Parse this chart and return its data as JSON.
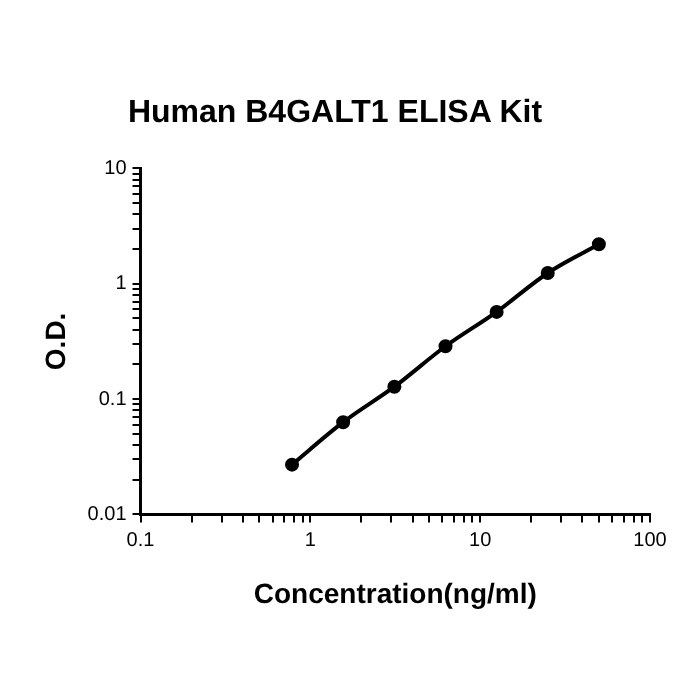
{
  "chart_data": {
    "type": "line",
    "title": "Human B4GALT1 ELISA Kit",
    "xlabel": "Concentration(ng/ml)",
    "ylabel": "O.D.",
    "x": [
      0.78,
      1.56,
      3.125,
      6.25,
      12.5,
      25,
      50
    ],
    "series": [
      {
        "color": "#000000",
        "values": [
          0.027,
          0.063,
          0.128,
          0.287,
          0.57,
          1.24,
          2.2
        ]
      }
    ],
    "log": "xy",
    "xlim": [
      0.1,
      100
    ],
    "ylim": [
      0.01,
      10
    ],
    "xticks": [
      0.1,
      {
        "value": 0.2,
        "label": null
      },
      {
        "value": 0.3,
        "label": null
      },
      {
        "value": 0.4,
        "label": null
      },
      {
        "value": 0.5,
        "label": null
      },
      {
        "value": 0.6,
        "label": null
      },
      {
        "value": 0.7,
        "label": null
      },
      {
        "value": 0.8,
        "label": null
      },
      {
        "value": 0.9,
        "label": null
      },
      1,
      {
        "value": 2,
        "label": null
      },
      {
        "value": 3,
        "label": null
      },
      {
        "value": 4,
        "label": null
      },
      {
        "value": 5,
        "label": null
      },
      {
        "value": 6,
        "label": null
      },
      {
        "value": 7,
        "label": null
      },
      {
        "value": 8,
        "label": null
      },
      {
        "value": 9,
        "label": null
      },
      10,
      {
        "value": 20,
        "label": null
      },
      {
        "value": 30,
        "label": null
      },
      {
        "value": 40,
        "label": null
      },
      {
        "value": 50,
        "label": null
      },
      {
        "value": 60,
        "label": null
      },
      {
        "value": 70,
        "label": null
      },
      {
        "value": 80,
        "label": null
      },
      {
        "value": 90,
        "label": null
      },
      100
    ],
    "yticks": [
      0.01,
      {
        "value": 0.02,
        "label": null
      },
      {
        "value": 0.03,
        "label": null
      },
      {
        "value": 0.04,
        "label": null
      },
      {
        "value": 0.05,
        "label": null
      },
      {
        "value": 0.06,
        "label": null
      },
      {
        "value": 0.07,
        "label": null
      },
      {
        "value": 0.08,
        "label": null
      },
      {
        "value": 0.09,
        "label": null
      },
      0.1,
      {
        "value": 0.2,
        "label": null
      },
      {
        "value": 0.3,
        "label": null
      },
      {
        "value": 0.4,
        "label": null
      },
      {
        "value": 0.5,
        "label": null
      },
      {
        "value": 0.6,
        "label": null
      },
      {
        "value": 0.7,
        "label": null
      },
      {
        "value": 0.8,
        "label": null
      },
      {
        "value": 0.9,
        "label": null
      },
      1,
      {
        "value": 2,
        "label": null
      },
      {
        "value": 3,
        "label": null
      },
      {
        "value": 4,
        "label": null
      },
      {
        "value": 5,
        "label": null
      },
      {
        "value": 6,
        "label": null
      },
      {
        "value": 7,
        "label": null
      },
      {
        "value": 8,
        "label": null
      },
      {
        "value": 9,
        "label": null
      },
      10
    ],
    "grid": false,
    "legend": false,
    "marker": "circle",
    "line_style": "solid"
  }
}
